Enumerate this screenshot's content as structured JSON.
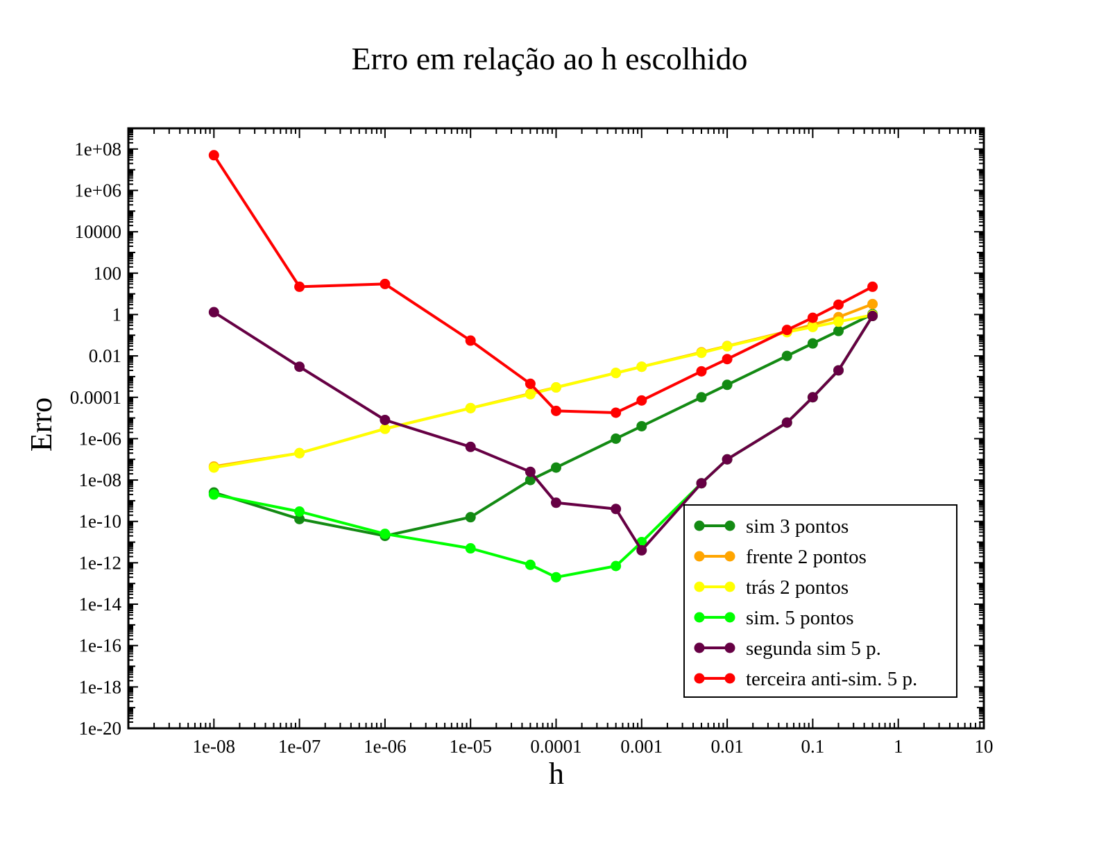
{
  "chart_data": {
    "type": "line",
    "title": "Erro em relação ao h escolhido",
    "xlabel": "h",
    "ylabel": "Erro",
    "xscale": "log",
    "yscale": "log",
    "xlim": [
      1e-09,
      10
    ],
    "ylim": [
      1e-20,
      1000000000.0
    ],
    "grid": false,
    "legend_position": "bottom-right",
    "x_tick_labels": [
      "1e-08",
      "1e-07",
      "1e-06",
      "1e-05",
      "0.0001",
      "0.001",
      "0.01",
      "0.1",
      "1",
      "10"
    ],
    "y_tick_labels": [
      "1e-20",
      "1e-18",
      "1e-16",
      "1e-14",
      "1e-12",
      "1e-10",
      "1e-08",
      "1e-06",
      "0.0001",
      "0.01",
      "1",
      "100",
      "10000",
      "1e+06",
      "1e+08"
    ],
    "x": [
      1e-08,
      1e-07,
      1e-06,
      1e-05,
      5e-05,
      0.0001,
      0.0005,
      0.001,
      0.005,
      0.01,
      0.05,
      0.1,
      0.2,
      0.5
    ],
    "series": [
      {
        "name": "sim 3 pontos",
        "color": "#138a13",
        "values": [
          2.5e-09,
          1.3e-10,
          2e-11,
          1.6e-10,
          1e-08,
          4e-08,
          1e-06,
          4e-06,
          0.0001,
          0.0004,
          0.01,
          0.04,
          0.16,
          1.05
        ]
      },
      {
        "name": "frente 2 pontos",
        "color": "#ffa500",
        "values": [
          4.5e-08,
          2e-07,
          3e-06,
          3e-05,
          0.00015,
          0.0003,
          0.0015,
          0.003,
          0.015,
          0.03,
          0.15,
          0.32,
          0.75,
          3.2
        ]
      },
      {
        "name": "trás 2 pontos",
        "color": "#ffff00",
        "values": [
          4e-08,
          2e-07,
          3e-06,
          3e-05,
          0.00014,
          0.0003,
          0.0015,
          0.003,
          0.014,
          0.029,
          0.14,
          0.25,
          0.45,
          0.95
        ]
      },
      {
        "name": "sim. 5 pontos",
        "color": "#00ff00",
        "values": [
          2e-09,
          3e-10,
          2.5e-11,
          5e-12,
          8e-13,
          2e-13,
          7e-13,
          1e-11,
          7e-09,
          1e-07,
          6e-06,
          0.0001,
          0.002,
          0.85
        ]
      },
      {
        "name": "segunda sim 5 p.",
        "color": "#660044",
        "values": [
          1.3,
          0.003,
          8e-06,
          4e-07,
          2.5e-08,
          8e-10,
          4e-10,
          4e-12,
          7e-09,
          1e-07,
          6e-06,
          0.0001,
          0.002,
          0.85
        ]
      },
      {
        "name": "terceira anti-sim. 5 p.",
        "color": "#ff0000",
        "values": [
          50000000.0,
          22,
          30,
          0.055,
          0.00045,
          2.2e-05,
          1.8e-05,
          7e-05,
          0.0018,
          0.007,
          0.18,
          0.7,
          3,
          22
        ]
      }
    ]
  }
}
